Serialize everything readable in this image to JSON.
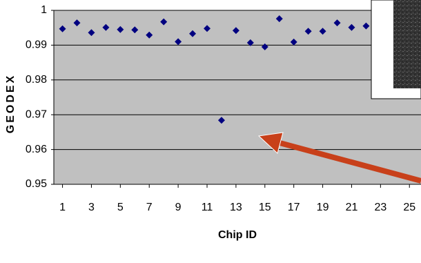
{
  "chart_data": {
    "type": "scatter",
    "x_label": "Chip ID",
    "y_label": "GEODEX",
    "x": [
      1,
      2,
      3,
      4,
      5,
      6,
      7,
      8,
      9,
      10,
      11,
      12,
      13,
      14,
      15,
      16,
      17,
      18,
      19,
      20,
      21,
      22
    ],
    "values": [
      0.9947,
      0.9964,
      0.9936,
      0.9951,
      0.9945,
      0.9944,
      0.9929,
      0.9967,
      0.991,
      0.9933,
      0.9948,
      0.9684,
      0.9942,
      0.9907,
      0.9895,
      0.9976,
      0.9909,
      0.994,
      0.994,
      0.9964,
      0.9951,
      0.9955
    ],
    "color": "#000080",
    "xlim": [
      0.4,
      25.8
    ],
    "xticks": [
      1,
      3,
      5,
      7,
      9,
      11,
      13,
      15,
      17,
      19,
      21,
      23,
      25
    ],
    "ylim": [
      0.95,
      1
    ],
    "yticks": [
      0.95,
      0.96,
      0.97,
      0.98,
      0.99,
      1
    ],
    "grid": true
  }
}
